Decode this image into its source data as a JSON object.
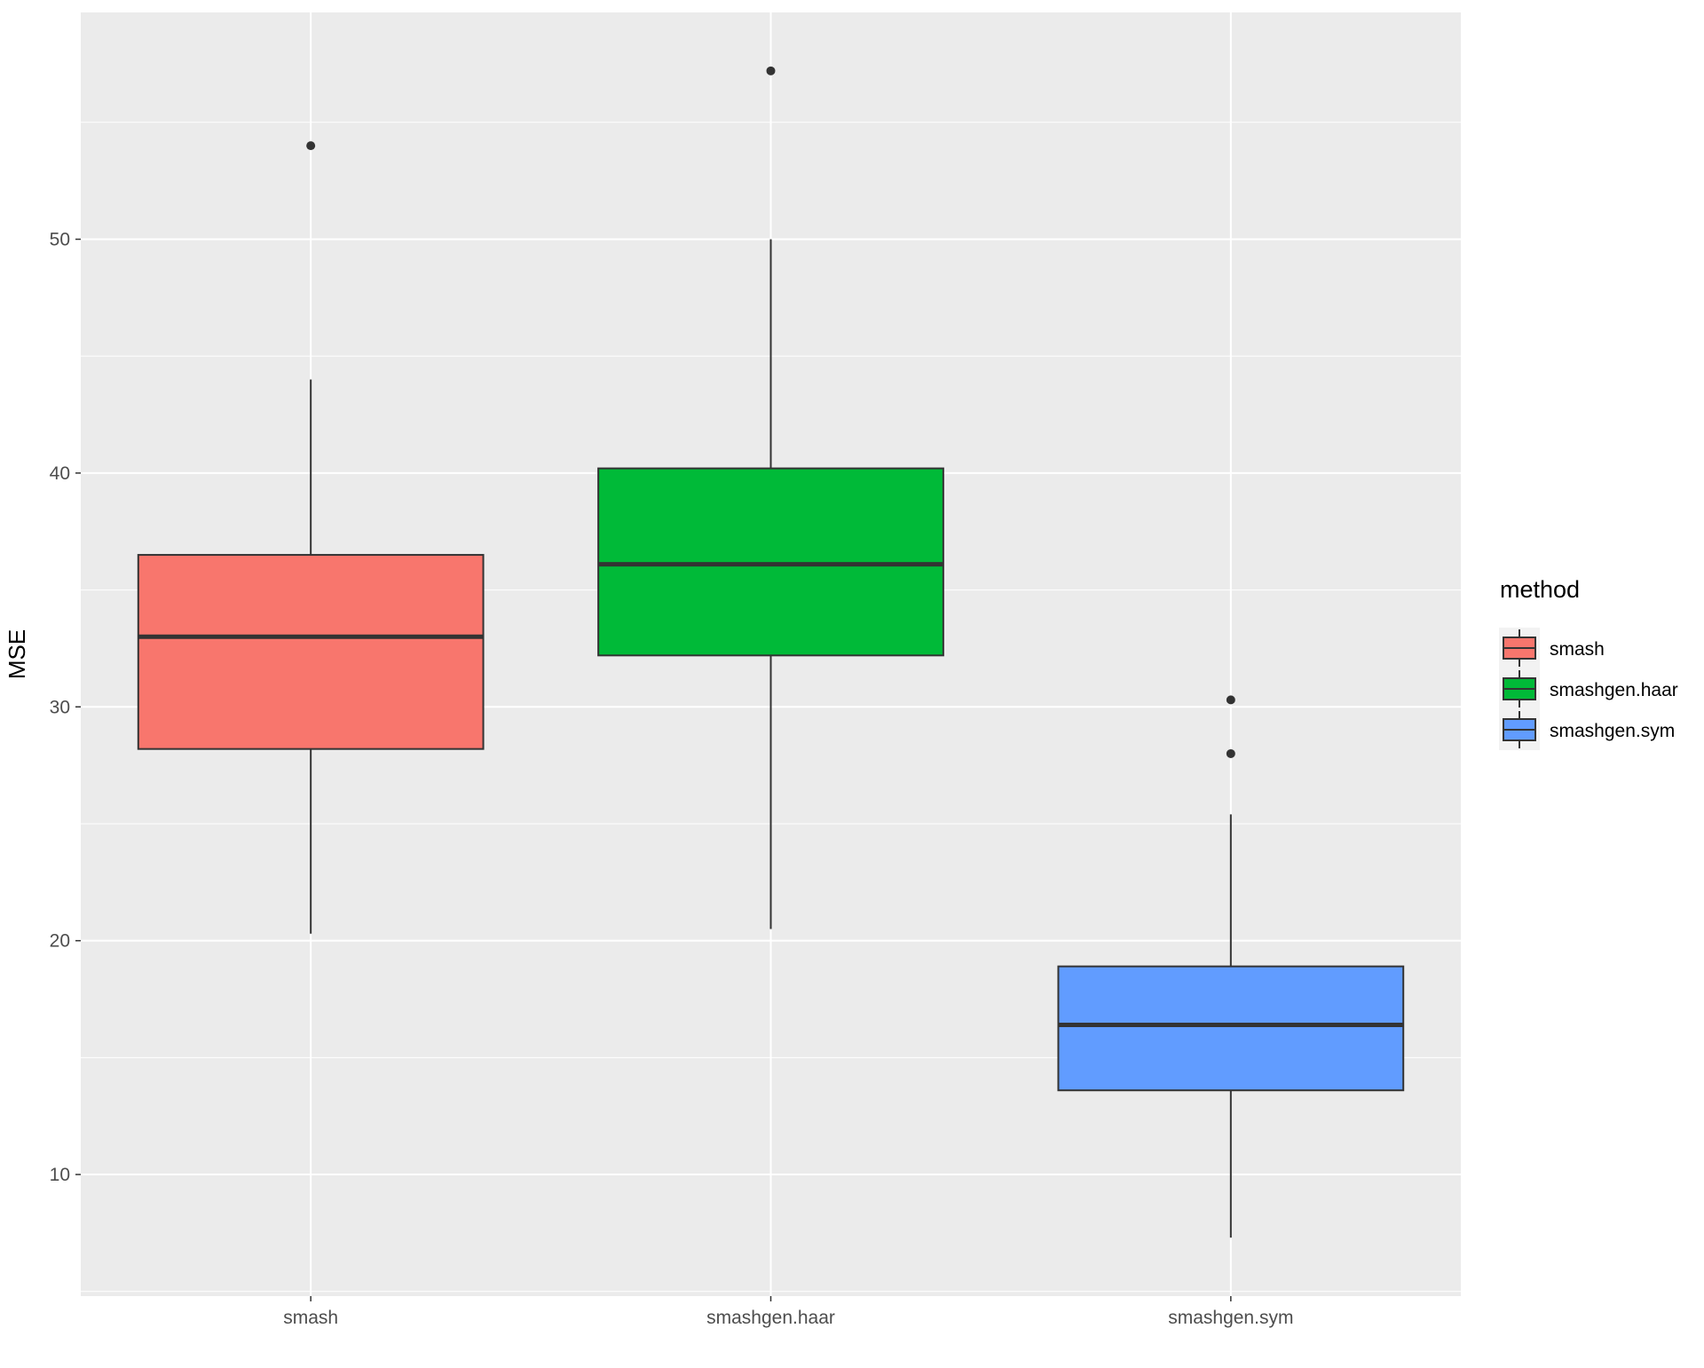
{
  "chart_data": {
    "type": "boxplot",
    "title": "",
    "xlabel": "",
    "ylabel": "MSE",
    "ylim": [
      4.8,
      59.7
    ],
    "y_ticks": [
      10,
      20,
      30,
      40,
      50
    ],
    "grid": true,
    "legend": {
      "title": "method",
      "position": "right"
    },
    "categories": [
      "smash",
      "smashgen.haar",
      "smashgen.sym"
    ],
    "series": [
      {
        "name": "smash",
        "color": "#F8766D",
        "whisker_low": 20.3,
        "q1": 28.2,
        "median": 33.0,
        "q3": 36.5,
        "whisker_high": 44.0,
        "outliers": [
          54.0
        ]
      },
      {
        "name": "smashgen.haar",
        "color": "#00BA38",
        "whisker_low": 20.5,
        "q1": 32.2,
        "median": 36.1,
        "q3": 40.2,
        "whisker_high": 50.0,
        "outliers": [
          57.2
        ]
      },
      {
        "name": "smashgen.sym",
        "color": "#619CFF",
        "whisker_low": 7.3,
        "q1": 13.6,
        "median": 16.4,
        "q3": 18.9,
        "whisker_high": 25.4,
        "outliers": [
          28.0,
          30.3
        ]
      }
    ]
  }
}
